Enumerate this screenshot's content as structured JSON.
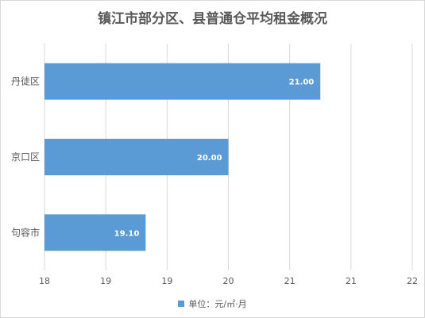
{
  "chart_data": {
    "type": "bar",
    "orientation": "horizontal",
    "title": "镇江市部分区、县普通仓平均租金概况",
    "categories": [
      "丹徒区",
      "京口区",
      "句容市"
    ],
    "values": [
      21.0,
      20.0,
      19.1
    ],
    "data_labels": [
      "21.00",
      "20.00",
      "19.10"
    ],
    "x_ticks": [
      "18",
      "19",
      "19",
      "20",
      "21",
      "21",
      "22"
    ],
    "xlim": [
      18,
      22
    ],
    "grid": true,
    "legend": {
      "position": "bottom",
      "label": "单位：元/㎡·月"
    },
    "colors": {
      "bar": "#5b9bd5",
      "grid": "#d9d9d9",
      "text": "#595959",
      "label": "#ffffff"
    }
  }
}
